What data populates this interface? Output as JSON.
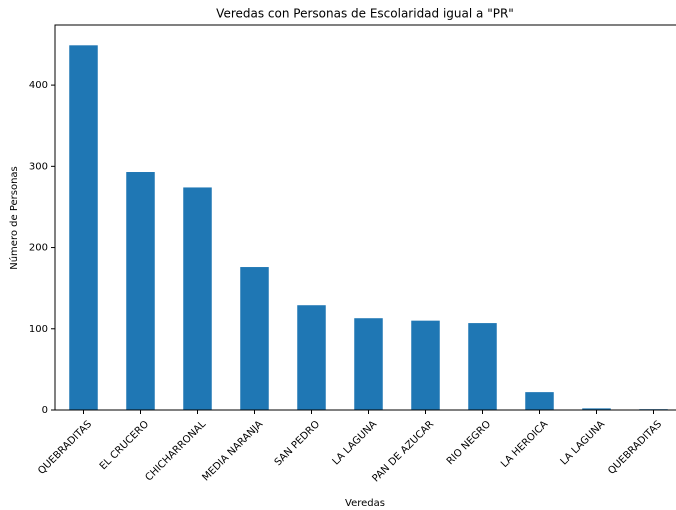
{
  "chart_data": {
    "type": "bar",
    "title": "Veredas con Personas de Escolaridad igual a \"PR\"",
    "xlabel": "Veredas",
    "ylabel": "Número de Personas",
    "categories": [
      "QUEBRADITAS",
      "EL CRUCERO",
      "CHICHARRONAL",
      "MEDIA NARANJA",
      "SAN PEDRO",
      "LA LAGUNA",
      "PAN DE AZUCAR",
      "RIO NEGRO",
      "LA HEROICA",
      "LA LAGUNA",
      "QUEBRADITAS"
    ],
    "values": [
      449,
      293,
      274,
      176,
      129,
      113,
      110,
      107,
      22,
      2,
      1
    ],
    "color": "#1f77b4",
    "ylim": [
      0,
      474
    ],
    "yticks": [
      0,
      100,
      200,
      300,
      400
    ],
    "grid": false
  }
}
